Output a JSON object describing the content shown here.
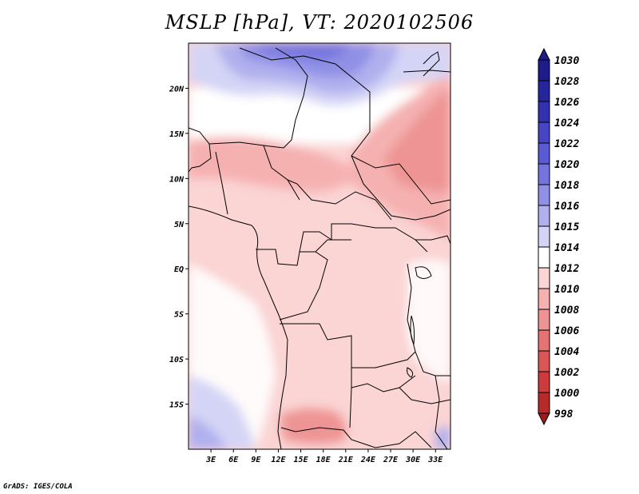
{
  "title": "MSLP [hPa], VT: 2020102506",
  "credit": "GrADS: IGES/COLA",
  "map": {
    "lon_range": [
      0,
      35
    ],
    "lat_range": [
      -20,
      25
    ],
    "lat_ticks": [
      "20N",
      "15N",
      "10N",
      "5N",
      "EQ",
      "5S",
      "10S",
      "15S"
    ],
    "lon_ticks": [
      "3E",
      "6E",
      "9E",
      "12E",
      "15E",
      "18E",
      "21E",
      "24E",
      "27E",
      "30E",
      "33E"
    ]
  },
  "colorbar": {
    "levels": [
      "1030",
      "1028",
      "1026",
      "1024",
      "1022",
      "1020",
      "1018",
      "1016",
      "1015",
      "1014",
      "1012",
      "1010",
      "1008",
      "1006",
      "1004",
      "1002",
      "1000",
      "998"
    ],
    "colors": [
      "#1c1c8a",
      "#26269c",
      "#3232b0",
      "#4646c4",
      "#5a5ad2",
      "#7474de",
      "#9090e6",
      "#b0b0ee",
      "#d4d4f6",
      "#ffffff",
      "#fbd4d4",
      "#f5b0b0",
      "#ee9494",
      "#e47474",
      "#da5656",
      "#cc3c3c",
      "#b62a2a",
      "#9c1c1c"
    ]
  }
}
